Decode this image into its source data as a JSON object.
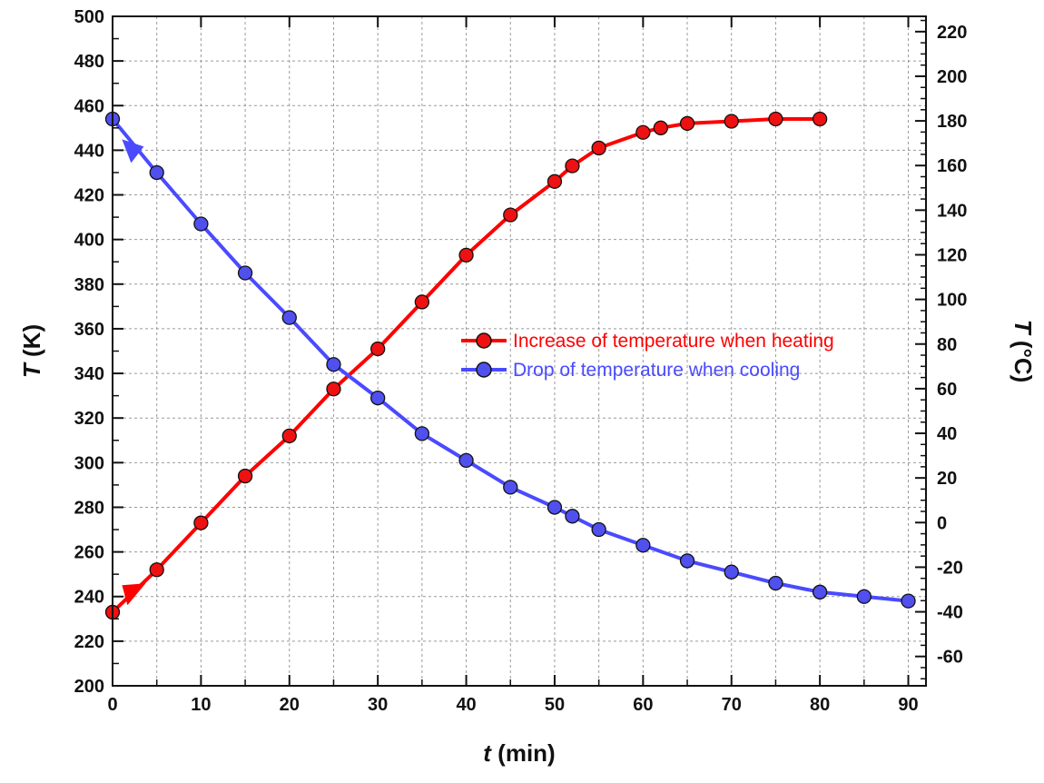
{
  "chart_data": {
    "type": "line",
    "x_label_var": "t",
    "x_label_unit": " (min)",
    "y_label_var": "T",
    "y_label_unit": " (K)",
    "y2_label_var": "T",
    "y2_label_unit": " (°C)",
    "xlim": [
      0,
      92
    ],
    "ylim": [
      200,
      500
    ],
    "y2lim": [
      -73.15,
      226.85
    ],
    "x_ticks": [
      0,
      10,
      20,
      30,
      40,
      50,
      60,
      70,
      80,
      90
    ],
    "y_ticks": [
      200,
      220,
      240,
      260,
      280,
      300,
      320,
      340,
      360,
      380,
      400,
      420,
      440,
      460,
      480,
      500
    ],
    "y2_ticks": [
      -60,
      -40,
      -20,
      0,
      20,
      40,
      60,
      80,
      100,
      120,
      140,
      160,
      180,
      200,
      220
    ],
    "grid": true,
    "legend_position": "center-right",
    "series": [
      {
        "name": "Increase of temperature when heating",
        "color": "#ff0000",
        "marker_color": "#ee1111",
        "x": [
          0,
          5,
          10,
          15,
          20,
          25,
          30,
          35,
          40,
          45,
          50,
          52,
          55,
          60,
          62,
          65,
          70,
          75,
          80
        ],
        "y": [
          233,
          252,
          273,
          294,
          312,
          333,
          351,
          372,
          393,
          411,
          426,
          433,
          441,
          448,
          450,
          452,
          453,
          454,
          454
        ]
      },
      {
        "name": "Drop of temperature when cooling",
        "color": "#4a4aff",
        "marker_color": "#5050ee",
        "x": [
          0,
          5,
          10,
          15,
          20,
          25,
          30,
          35,
          40,
          45,
          50,
          52,
          55,
          60,
          65,
          70,
          75,
          80,
          85,
          90
        ],
        "y": [
          454,
          430,
          407,
          385,
          365,
          344,
          329,
          313,
          301,
          289,
          280,
          276,
          270,
          263,
          256,
          251,
          246,
          242,
          240,
          238
        ]
      }
    ],
    "arrows": [
      {
        "series": 0,
        "x": 2.3,
        "y": 241,
        "direction": "right"
      },
      {
        "series": 1,
        "x": 2.3,
        "y": 440,
        "direction": "down"
      }
    ]
  }
}
